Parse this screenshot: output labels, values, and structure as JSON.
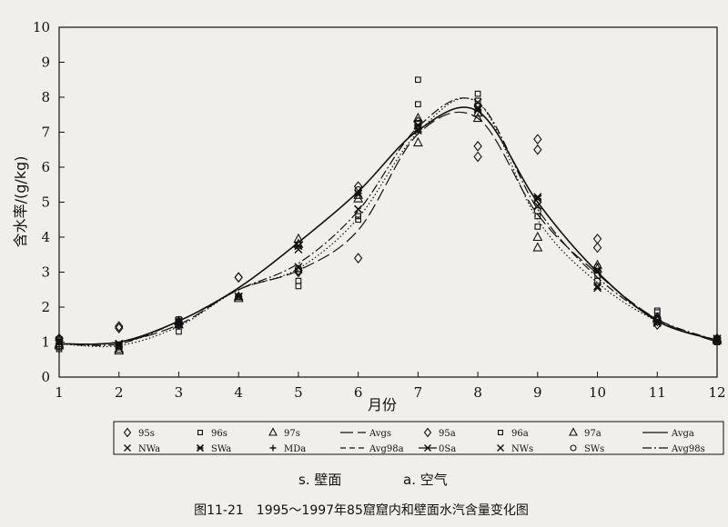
{
  "chart_data": {
    "type": "line",
    "title": "",
    "xlabel": "月份",
    "ylabel": "含水率/(g/kg)",
    "xlim": [
      1,
      12
    ],
    "ylim": [
      0,
      10
    ],
    "x_ticks": [
      "1",
      "2",
      "3",
      "4",
      "5",
      "6",
      "7",
      "8",
      "9",
      "10",
      "11",
      "12"
    ],
    "y_ticks": [
      "0",
      "1",
      "2",
      "3",
      "4",
      "5",
      "6",
      "7",
      "8",
      "9",
      "10"
    ],
    "grid": false,
    "legend_position": "bottom",
    "legend": [
      "95s",
      "96s",
      "97s",
      "Avgs",
      "95a",
      "96a",
      "97a",
      "Avga",
      "NWa",
      "SWa",
      "MDa",
      "Avg98a",
      "0Sa",
      "NWs",
      "SWs",
      "Avg98s"
    ],
    "note": {
      "s": "s. 壁面",
      "a": "a. 空气"
    },
    "caption": "图11-21　1995～1997年85窟窟内和壁面水汽含量变化图",
    "series": [
      {
        "name": "95s",
        "marker": "diamond",
        "x": [
          1,
          2,
          3,
          4,
          5,
          6,
          7,
          8,
          9,
          10,
          11,
          12
        ],
        "y": [
          1.05,
          1.45,
          1.55,
          2.85,
          3.0,
          3.4,
          7.3,
          6.3,
          6.5,
          3.7,
          1.5,
          1.1
        ]
      },
      {
        "name": "96s",
        "marker": "square",
        "x": [
          1,
          2,
          3,
          4,
          5,
          6,
          7,
          8,
          9,
          10,
          11,
          12
        ],
        "y": [
          0.85,
          0.9,
          1.3,
          2.3,
          2.6,
          4.5,
          8.5,
          8.1,
          4.3,
          2.9,
          1.85,
          1.0
        ]
      },
      {
        "name": "97s",
        "marker": "triangle",
        "x": [
          1,
          2,
          3,
          4,
          5,
          6,
          7,
          8,
          9,
          10,
          11,
          12
        ],
        "y": [
          0.95,
          0.8,
          1.6,
          2.25,
          3.95,
          5.2,
          7.4,
          7.4,
          3.7,
          3.2,
          1.7,
          1.05
        ]
      },
      {
        "name": "95a",
        "marker": "diamond",
        "x": [
          1,
          2,
          3,
          4,
          5,
          6,
          7,
          8,
          9,
          10,
          11,
          12
        ],
        "y": [
          1.1,
          1.4,
          1.5,
          2.85,
          3.05,
          5.45,
          7.1,
          6.6,
          6.8,
          3.95,
          1.6,
          1.05
        ]
      },
      {
        "name": "96a",
        "marker": "square",
        "x": [
          1,
          2,
          3,
          4,
          5,
          6,
          7,
          8,
          9,
          10,
          11,
          12
        ],
        "y": [
          0.8,
          0.85,
          1.65,
          2.3,
          2.75,
          4.6,
          7.8,
          7.9,
          4.6,
          2.75,
          1.9,
          1.0
        ]
      },
      {
        "name": "97a",
        "marker": "triangle",
        "x": [
          1,
          2,
          3,
          4,
          5,
          6,
          7,
          8,
          9,
          10,
          11,
          12
        ],
        "y": [
          0.9,
          0.75,
          1.5,
          2.3,
          3.8,
          5.1,
          6.7,
          7.55,
          4.0,
          3.1,
          1.65,
          1.1
        ]
      },
      {
        "name": "NWa",
        "marker": "x",
        "x": [
          1,
          2,
          3,
          4,
          5,
          6,
          7,
          8,
          9,
          10,
          11,
          12
        ],
        "y": [
          1.0,
          0.9,
          1.5,
          2.3,
          3.65,
          4.8,
          7.05,
          7.7,
          4.9,
          2.55,
          1.55,
          1.05
        ]
      },
      {
        "name": "SWa",
        "marker": "star",
        "x": [
          1,
          2,
          3,
          4,
          5,
          6,
          7,
          8,
          9,
          10,
          11,
          12
        ],
        "y": [
          1.05,
          0.95,
          1.55,
          2.3,
          3.75,
          5.25,
          7.2,
          7.65,
          5.1,
          3.05,
          1.6,
          1.1
        ]
      },
      {
        "name": "NWs",
        "marker": "x",
        "x": [
          1,
          2,
          3,
          4,
          5,
          6,
          7,
          8,
          9,
          10,
          11,
          12
        ],
        "y": [
          1.0,
          0.95,
          1.6,
          2.3,
          3.15,
          4.8,
          7.1,
          7.85,
          5.15,
          2.6,
          1.55,
          1.05
        ]
      },
      {
        "name": "SWs",
        "marker": "circle",
        "x": [
          1,
          2,
          3,
          4,
          5,
          6,
          7,
          8,
          9,
          10,
          11,
          12
        ],
        "y": [
          1.1,
          0.9,
          1.55,
          2.3,
          3.1,
          5.35,
          7.25,
          7.75,
          4.75,
          3.15,
          1.7,
          1.1
        ]
      },
      {
        "name": "Avgs",
        "line": "long-dash",
        "x": [
          1,
          2,
          3,
          4,
          5,
          6,
          7,
          8,
          9,
          10,
          11,
          12
        ],
        "y": [
          0.95,
          1.0,
          1.5,
          2.5,
          3.05,
          4.2,
          6.95,
          7.4,
          4.65,
          2.95,
          1.65,
          1.0
        ]
      },
      {
        "name": "Avga",
        "line": "solid",
        "x": [
          1,
          2,
          3,
          4,
          5,
          6,
          7,
          8,
          9,
          10,
          11,
          12
        ],
        "y": [
          0.95,
          1.0,
          1.6,
          2.55,
          3.85,
          5.3,
          7.05,
          7.6,
          5.0,
          3.0,
          1.6,
          1.05
        ]
      },
      {
        "name": "Avg98a",
        "line": "dash-dot",
        "x": [
          1,
          2,
          3,
          4,
          5,
          6,
          7,
          8,
          9,
          10,
          11,
          12
        ],
        "y": [
          0.95,
          0.95,
          1.6,
          2.5,
          3.25,
          4.75,
          7.15,
          7.85,
          4.8,
          2.85,
          1.65,
          1.05
        ]
      },
      {
        "name": "Avg98s",
        "line": "dotted",
        "x": [
          1,
          2,
          3,
          4,
          5,
          6,
          7,
          8,
          9,
          10,
          11,
          12
        ],
        "y": [
          0.95,
          0.9,
          1.45,
          2.5,
          3.1,
          4.55,
          7.0,
          7.85,
          4.5,
          2.7,
          1.6,
          1.05
        ]
      }
    ]
  }
}
